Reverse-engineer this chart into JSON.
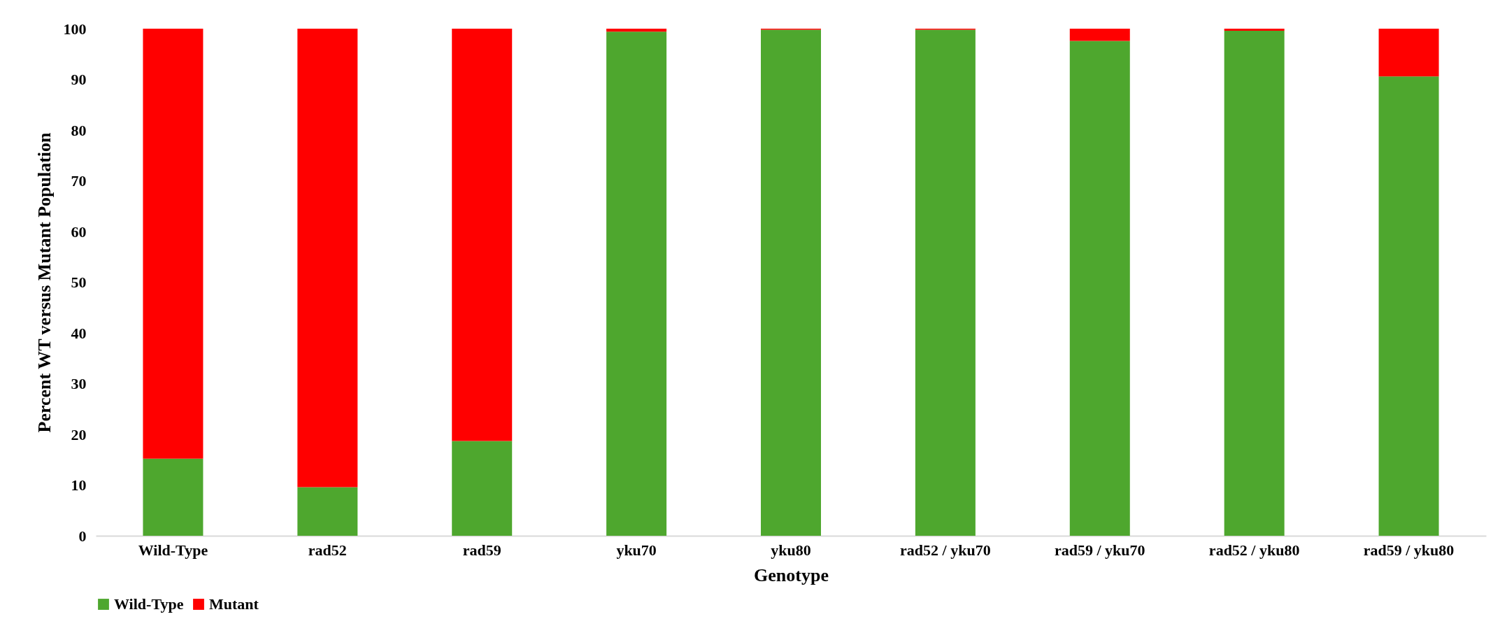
{
  "chart_data": {
    "type": "bar",
    "stacked": true,
    "xlabel": "Genotype",
    "ylabel": "Percent WT versus Mutant Population",
    "categories": [
      "Wild-Type",
      "rad52",
      "rad59",
      "yku70",
      "yku80",
      "rad52 / yku70",
      "rad59 / yku70",
      "rad52 / yku80",
      "rad59 / yku80"
    ],
    "series": [
      {
        "name": "Wild-Type",
        "color": "#4ea72e",
        "values": [
          15.2,
          9.6,
          18.7,
          99.4,
          99.8,
          99.8,
          97.6,
          99.6,
          90.6
        ]
      },
      {
        "name": "Mutant",
        "color": "#ff0000",
        "values": [
          84.8,
          90.4,
          81.3,
          0.6,
          0.2,
          0.2,
          2.4,
          0.4,
          9.4
        ]
      }
    ],
    "ylim": [
      0,
      100
    ],
    "yticks": [
      0,
      10,
      20,
      30,
      40,
      50,
      60,
      70,
      80,
      90,
      100
    ],
    "grid": false,
    "legend": "bottom"
  }
}
